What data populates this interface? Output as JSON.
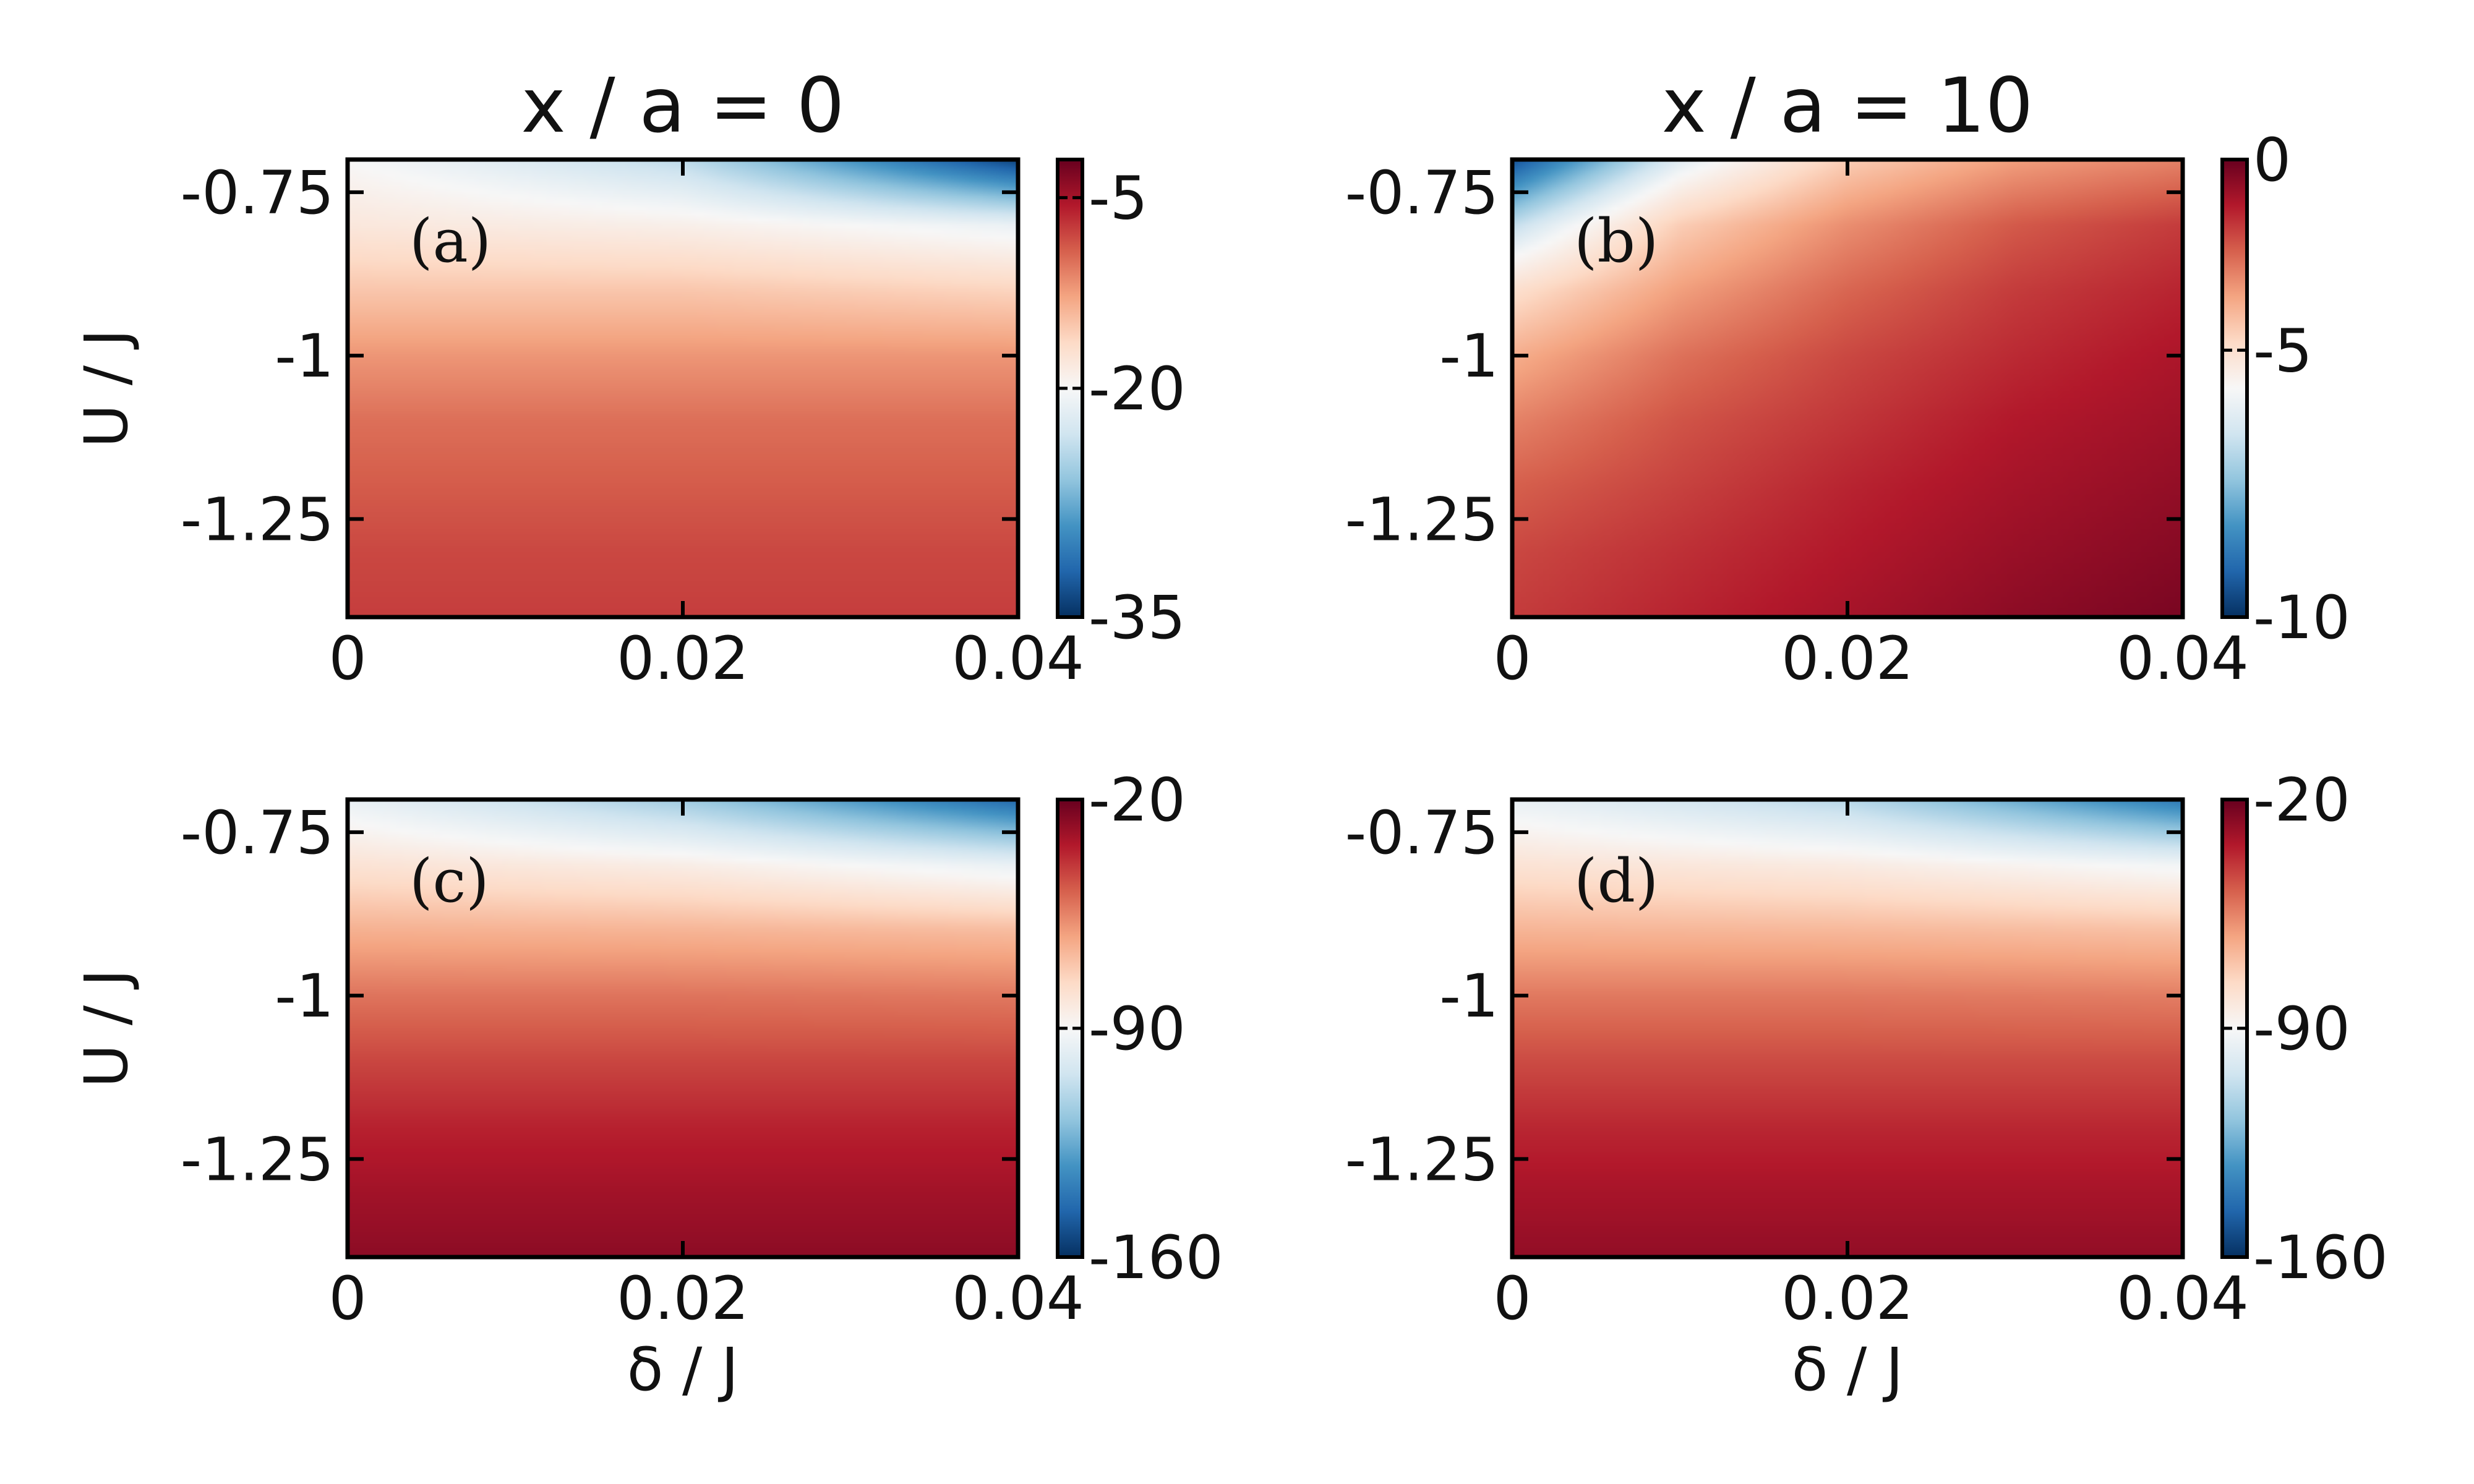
{
  "colormap": [
    "#053061",
    "#2166ac",
    "#4393c3",
    "#92c5de",
    "#d1e5f0",
    "#f7f7f7",
    "#fddbc7",
    "#f4a582",
    "#d6604d",
    "#b2182b",
    "#67001f"
  ],
  "chart_data": [
    {
      "type": "heatmap",
      "panel": "(a)",
      "title": "x / a = 0",
      "xlabel": "",
      "ylabel": "U / J",
      "xlim": [
        0,
        0.04
      ],
      "ylim": [
        -1.4,
        -0.7
      ],
      "xticks": [
        0,
        0.02,
        0.04
      ],
      "xticklabels": [
        "0",
        "0.02",
        "0.04"
      ],
      "yticks": [
        -0.75,
        -1,
        -1.25
      ],
      "yticklabels": [
        "-0.75",
        "-1",
        "-1.25"
      ],
      "colorbar": {
        "range": [
          -35,
          -2
        ],
        "ticks": [
          -5,
          -20,
          -35
        ],
        "ticklabels": [
          "-5",
          "-20",
          "-35"
        ],
        "color_ticks": [
          -2,
          -20,
          -35
        ],
        "color_stops": [
          0,
          0.5,
          1
        ]
      },
      "x": [
        0,
        0.02,
        0.04
      ],
      "y": [
        -0.7,
        -0.8,
        -0.9,
        -1.0,
        -1.1,
        -1.2,
        -1.3,
        -1.4
      ],
      "z": [
        [
          -20,
          -24,
          -34
        ],
        [
          -18,
          -19,
          -21
        ],
        [
          -15,
          -15,
          -16
        ],
        [
          -12,
          -12,
          -12
        ],
        [
          -10,
          -10,
          -10
        ],
        [
          -9,
          -9,
          -9
        ],
        [
          -8,
          -8,
          -8
        ],
        [
          -7.5,
          -7.5,
          -7.5
        ]
      ]
    },
    {
      "type": "heatmap",
      "panel": "(b)",
      "title": "x / a = 10",
      "xlabel": "",
      "ylabel": "",
      "xlim": [
        0,
        0.04
      ],
      "ylim": [
        -1.4,
        -0.7
      ],
      "xticks": [
        0,
        0.02,
        0.04
      ],
      "xticklabels": [
        "0",
        "0.02",
        "0.04"
      ],
      "yticks": [
        -0.75,
        -1,
        -1.25
      ],
      "yticklabels": [
        "-0.75",
        "-1",
        "-1.25"
      ],
      "colorbar": {
        "range": [
          -10,
          0
        ],
        "ticks": [
          0,
          -5,
          -10
        ],
        "ticklabels": [
          "0",
          "-5",
          "-10"
        ],
        "color_ticks": [
          0,
          -6,
          -10
        ],
        "color_stops": [
          0,
          0.5,
          1
        ]
      },
      "x": [
        0,
        0.01,
        0.02,
        0.03,
        0.04
      ],
      "y": [
        -0.7,
        -0.8,
        -0.9,
        -1.0,
        -1.1,
        -1.2,
        -1.3,
        -1.4
      ],
      "z": [
        [
          -9.5,
          -6.5,
          -4.5,
          -3.5,
          -3
        ],
        [
          -7,
          -4.5,
          -3.2,
          -2.3,
          -1.8
        ],
        [
          -5,
          -3.5,
          -2.5,
          -1.8,
          -1.4
        ],
        [
          -3.8,
          -2.7,
          -2,
          -1.5,
          -1.1
        ],
        [
          -3,
          -2.2,
          -1.7,
          -1.2,
          -0.9
        ],
        [
          -2.4,
          -1.9,
          -1.4,
          -1.0,
          -0.7
        ],
        [
          -2,
          -1.6,
          -1.2,
          -0.8,
          -0.5
        ],
        [
          -1.8,
          -1.4,
          -1.0,
          -0.6,
          -0.3
        ]
      ]
    },
    {
      "type": "heatmap",
      "panel": "(c)",
      "title": "",
      "xlabel": "δ / J",
      "ylabel": "U / J",
      "xlim": [
        0,
        0.04
      ],
      "ylim": [
        -1.4,
        -0.7
      ],
      "xticks": [
        0,
        0.02,
        0.04
      ],
      "xticklabels": [
        "0",
        "0.02",
        "0.04"
      ],
      "yticks": [
        -0.75,
        -1,
        -1.25
      ],
      "yticklabels": [
        "-0.75",
        "-1",
        "-1.25"
      ],
      "colorbar": {
        "range": [
          -160,
          -20
        ],
        "ticks": [
          -20,
          -90,
          -160
        ],
        "ticklabels": [
          "-20",
          "-90",
          "-160"
        ],
        "color_ticks": [
          -20,
          -90,
          -160
        ],
        "color_stops": [
          0,
          0.5,
          1
        ]
      },
      "x": [
        0,
        0.02,
        0.04
      ],
      "y": [
        -0.7,
        -0.8,
        -0.9,
        -1.0,
        -1.1,
        -1.2,
        -1.3,
        -1.4
      ],
      "z": [
        [
          -95,
          -115,
          -145
        ],
        [
          -80,
          -85,
          -95
        ],
        [
          -65,
          -66,
          -68
        ],
        [
          -52,
          -52,
          -53
        ],
        [
          -43,
          -43,
          -43
        ],
        [
          -36,
          -36,
          -36
        ],
        [
          -31,
          -31,
          -31
        ],
        [
          -27,
          -27,
          -27
        ]
      ]
    },
    {
      "type": "heatmap",
      "panel": "(d)",
      "title": "",
      "xlabel": "δ / J",
      "ylabel": "",
      "xlim": [
        0,
        0.04
      ],
      "ylim": [
        -1.4,
        -0.7
      ],
      "xticks": [
        0,
        0.02,
        0.04
      ],
      "xticklabels": [
        "0",
        "0.02",
        "0.04"
      ],
      "yticks": [
        -0.75,
        -1,
        -1.25
      ],
      "yticklabels": [
        "-0.75",
        "-1",
        "-1.25"
      ],
      "colorbar": {
        "range": [
          -160,
          -20
        ],
        "ticks": [
          -20,
          -90,
          -160
        ],
        "ticklabels": [
          "-20",
          "-90",
          "-160"
        ],
        "color_ticks": [
          -20,
          -90,
          -160
        ],
        "color_stops": [
          0,
          0.5,
          1
        ]
      },
      "x": [
        0,
        0.02,
        0.04
      ],
      "y": [
        -0.7,
        -0.8,
        -0.9,
        -1.0,
        -1.1,
        -1.2,
        -1.3,
        -1.4
      ],
      "z": [
        [
          -95,
          -110,
          -140
        ],
        [
          -80,
          -84,
          -92
        ],
        [
          -66,
          -67,
          -69
        ],
        [
          -53,
          -53,
          -54
        ],
        [
          -44,
          -44,
          -44
        ],
        [
          -37,
          -37,
          -37
        ],
        [
          -32,
          -32,
          -32
        ],
        [
          -28,
          -28,
          -28
        ]
      ]
    }
  ]
}
